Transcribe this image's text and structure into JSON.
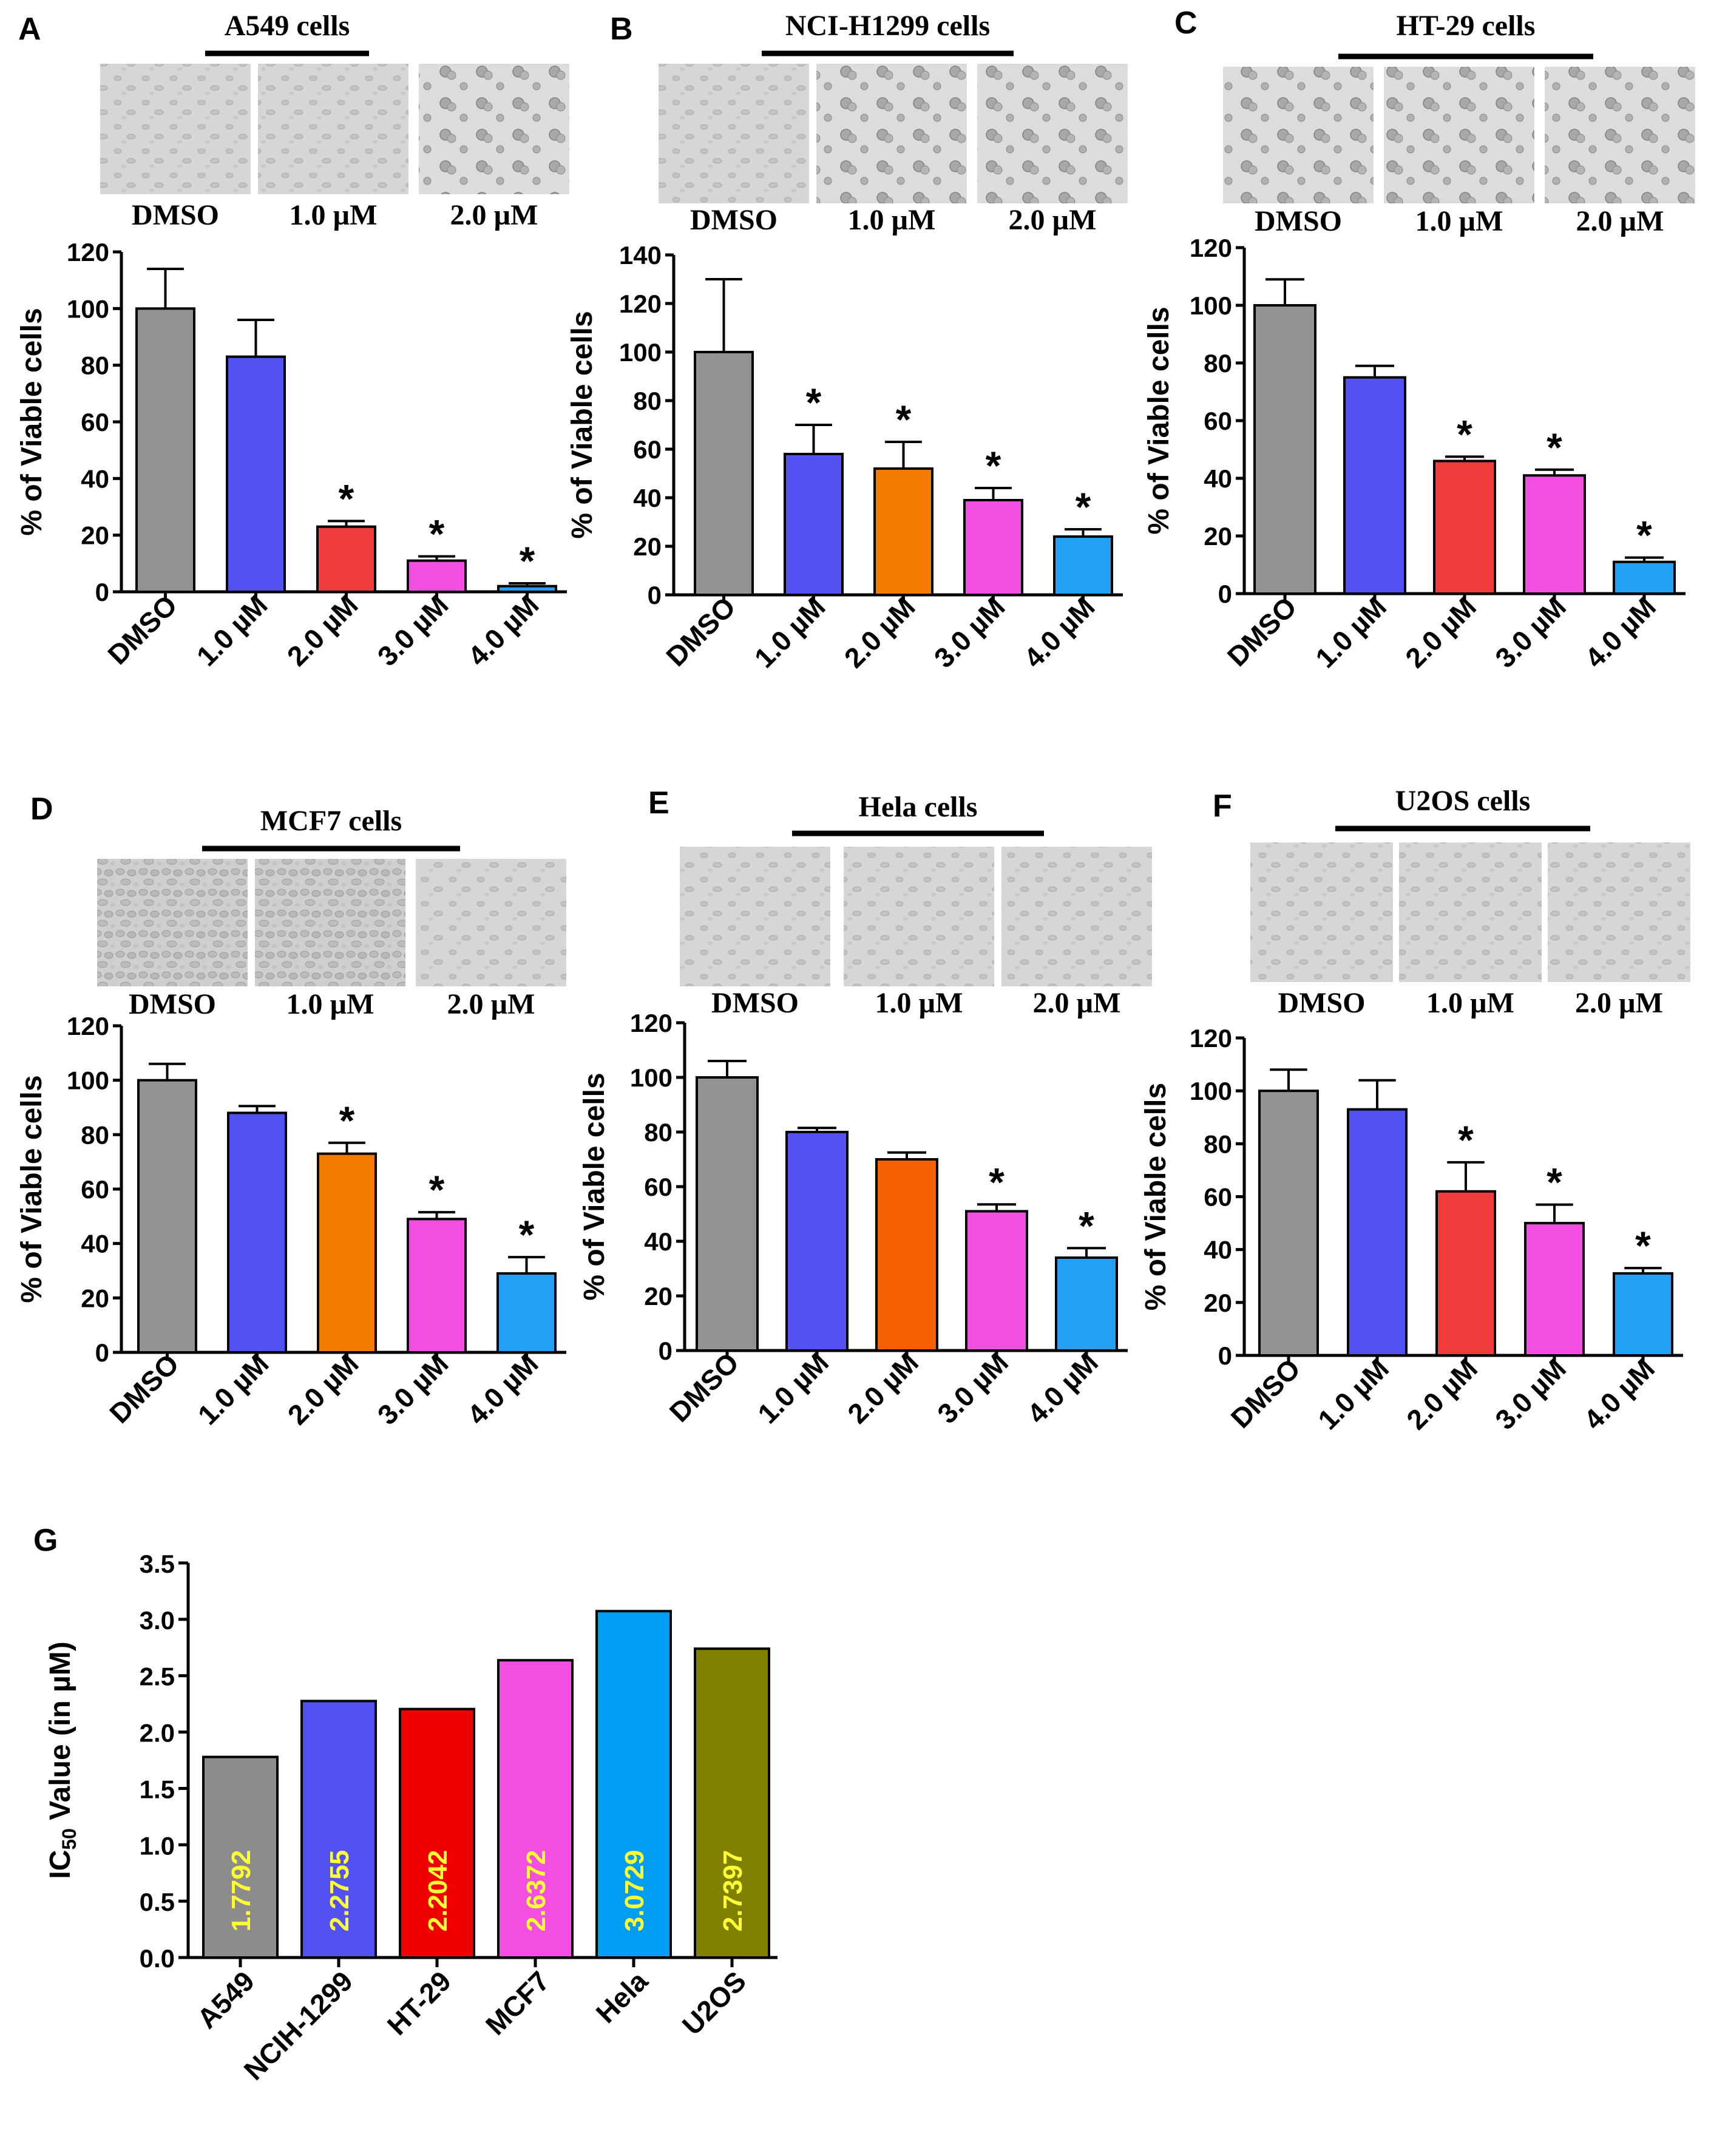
{
  "chart_data": [
    {
      "panel": "A",
      "type": "bar",
      "title": "A549 cells",
      "micrograph_labels": [
        "DMSO",
        "1.0 µM",
        "2.0 µM"
      ],
      "categories": [
        "DMSO",
        "1.0 µM",
        "2.0 µM",
        "3.0 µM",
        "4.0 µM"
      ],
      "values": [
        100,
        83,
        23,
        11,
        2
      ],
      "errors": [
        14,
        13,
        2,
        1.5,
        1
      ],
      "significant": [
        false,
        false,
        true,
        true,
        true
      ],
      "colors": [
        "#929292",
        "#5252f2",
        "#f23c3c",
        "#f24ee2",
        "#22a0f2"
      ],
      "ylabel": "% of Viable cells",
      "ylim": [
        0,
        120
      ],
      "yticks": [
        0,
        20,
        40,
        60,
        80,
        100,
        120
      ]
    },
    {
      "panel": "B",
      "type": "bar",
      "title": "NCI-H1299 cells",
      "micrograph_labels": [
        "DMSO",
        "1.0 µM",
        "2.0 µM"
      ],
      "categories": [
        "DMSO",
        "1.0 µM",
        "2.0 µM",
        "3.0 µM",
        "4.0 µM"
      ],
      "values": [
        100,
        58,
        52,
        39,
        24
      ],
      "errors": [
        30,
        12,
        11,
        5,
        3
      ],
      "significant": [
        false,
        true,
        true,
        true,
        true
      ],
      "colors": [
        "#929292",
        "#5252f2",
        "#f57a00",
        "#f24ee2",
        "#22a0f2"
      ],
      "ylabel": "% of Viable cells",
      "ylim": [
        0,
        140
      ],
      "yticks": [
        0,
        20,
        40,
        60,
        80,
        100,
        120,
        140
      ]
    },
    {
      "panel": "C",
      "type": "bar",
      "title": "HT-29 cells",
      "micrograph_labels": [
        "DMSO",
        "1.0 µM",
        "2.0 µM"
      ],
      "categories": [
        "DMSO",
        "1.0 µM",
        "2.0 µM",
        "3.0 µM",
        "4.0 µM"
      ],
      "values": [
        100,
        75,
        46,
        41,
        11
      ],
      "errors": [
        9,
        4,
        1.5,
        2,
        1.5
      ],
      "significant": [
        false,
        false,
        true,
        true,
        true
      ],
      "colors": [
        "#929292",
        "#5252f2",
        "#f23c3c",
        "#f24ee2",
        "#22a0f2"
      ],
      "ylabel": "% of Viable cells",
      "ylim": [
        0,
        120
      ],
      "yticks": [
        0,
        20,
        40,
        60,
        80,
        100,
        120
      ]
    },
    {
      "panel": "D",
      "type": "bar",
      "title": "MCF7 cells",
      "micrograph_labels": [
        "DMSO",
        "1.0 µM",
        "2.0 µM"
      ],
      "categories": [
        "DMSO",
        "1.0 µM",
        "2.0 µM",
        "3.0 µM",
        "4.0 µM"
      ],
      "values": [
        100,
        88,
        73,
        49,
        29
      ],
      "errors": [
        6,
        2.5,
        4,
        2.5,
        6
      ],
      "significant": [
        false,
        false,
        true,
        true,
        true
      ],
      "colors": [
        "#929292",
        "#5252f2",
        "#f57a00",
        "#f24ee2",
        "#22a0f2"
      ],
      "ylabel": "% of Viable cells",
      "ylim": [
        0,
        120
      ],
      "yticks": [
        0,
        20,
        40,
        60,
        80,
        100,
        120
      ]
    },
    {
      "panel": "E",
      "type": "bar",
      "title": "Hela cells",
      "micrograph_labels": [
        "DMSO",
        "1.0 µM",
        "2.0 µM"
      ],
      "categories": [
        "DMSO",
        "1.0 µM",
        "2.0 µM",
        "3.0 µM",
        "4.0 µM"
      ],
      "values": [
        100,
        80,
        70,
        51,
        34
      ],
      "errors": [
        6,
        1.5,
        2.5,
        2.5,
        3.5
      ],
      "significant": [
        false,
        false,
        false,
        true,
        true
      ],
      "colors": [
        "#929292",
        "#5252f2",
        "#f56000",
        "#f24ee2",
        "#22a0f2"
      ],
      "ylabel": "% of Viable cells",
      "ylim": [
        0,
        120
      ],
      "yticks": [
        0,
        20,
        40,
        60,
        80,
        100,
        120
      ]
    },
    {
      "panel": "F",
      "type": "bar",
      "title": "U2OS cells",
      "micrograph_labels": [
        "DMSO",
        "1.0 µM",
        "2.0 µM"
      ],
      "categories": [
        "DMSO",
        "1.0 µM",
        "2.0 µM",
        "3.0 µM",
        "4.0 µM"
      ],
      "values": [
        100,
        93,
        62,
        50,
        31
      ],
      "errors": [
        8,
        11,
        11,
        7,
        2
      ],
      "significant": [
        false,
        false,
        true,
        true,
        true
      ],
      "colors": [
        "#929292",
        "#5252f2",
        "#f23c3c",
        "#f24ee2",
        "#22a0f2"
      ],
      "ylabel": "% of Viable cells",
      "ylim": [
        0,
        120
      ],
      "yticks": [
        0,
        20,
        40,
        60,
        80,
        100,
        120
      ]
    },
    {
      "panel": "G",
      "type": "bar",
      "categories": [
        "A549",
        "NCIH-1299",
        "HT-29",
        "MCF7",
        "Hela",
        "U2OS"
      ],
      "values": [
        1.7792,
        2.2755,
        2.2042,
        2.6372,
        3.0729,
        2.7397
      ],
      "value_labels": [
        "1.7792",
        "2.2755",
        "2.2042",
        "2.6372",
        "3.0729",
        "2.7397"
      ],
      "colors": [
        "#8c8c8c",
        "#5252f2",
        "#f20000",
        "#f24ee2",
        "#009ef2",
        "#808000"
      ],
      "value_label_color": "#ffff33",
      "ylabel_main": "IC",
      "ylabel_sub": "50",
      "ylabel_rest": " Value (in µM)",
      "ylim": [
        0,
        3.5
      ],
      "yticks": [
        "0.0",
        "0.5",
        "1.0",
        "1.5",
        "2.0",
        "2.5",
        "3.0",
        "3.5"
      ]
    }
  ]
}
